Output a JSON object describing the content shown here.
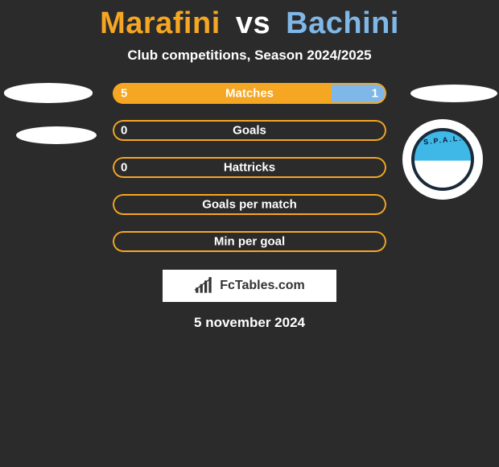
{
  "colors": {
    "background": "#2b2b2b",
    "player1": "#f5a623",
    "player2": "#7fb8e8",
    "text_white": "#ffffff"
  },
  "title": {
    "player1": "Marafini",
    "vs": "vs",
    "player2": "Bachini"
  },
  "subtitle": "Club competitions, Season 2024/2025",
  "club_badge_text": "S.P.A.L.",
  "bars": [
    {
      "label": "Matches",
      "left_value": "5",
      "right_value": "1",
      "left_pct": 80,
      "right_pct": 20,
      "left_fill": "#f5a623",
      "right_fill": "#7fb8e8",
      "border_color": "#f5a623"
    },
    {
      "label": "Goals",
      "left_value": "0",
      "right_value": "",
      "left_pct": 0,
      "right_pct": 0,
      "left_fill": "transparent",
      "right_fill": "transparent",
      "border_color": "#f5a623"
    },
    {
      "label": "Hattricks",
      "left_value": "0",
      "right_value": "",
      "left_pct": 0,
      "right_pct": 0,
      "left_fill": "transparent",
      "right_fill": "transparent",
      "border_color": "#f5a623"
    },
    {
      "label": "Goals per match",
      "left_value": "",
      "right_value": "",
      "left_pct": 0,
      "right_pct": 0,
      "left_fill": "transparent",
      "right_fill": "transparent",
      "border_color": "#f5a623"
    },
    {
      "label": "Min per goal",
      "left_value": "",
      "right_value": "",
      "left_pct": 0,
      "right_pct": 0,
      "left_fill": "transparent",
      "right_fill": "transparent",
      "border_color": "#f5a623"
    }
  ],
  "watermark": "FcTables.com",
  "date": "5 november 2024"
}
